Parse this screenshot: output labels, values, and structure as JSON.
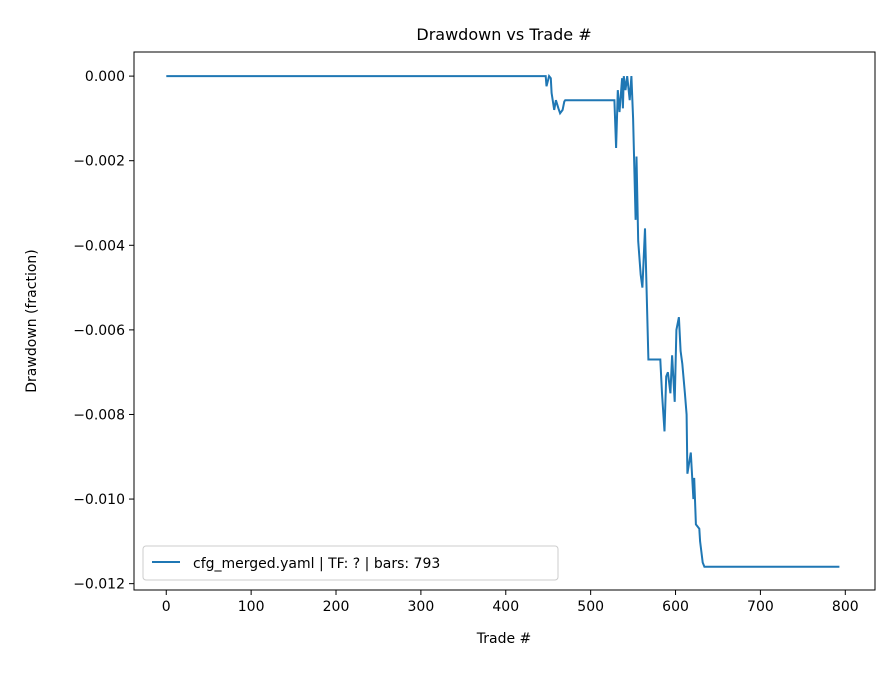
{
  "chart_data": {
    "type": "line",
    "title": "Drawdown vs Trade #",
    "xlabel": "Trade #",
    "ylabel": "Drawdown (fraction)",
    "xlim": [
      -38,
      835
    ],
    "ylim": [
      -0.01215,
      0.00057
    ],
    "xticks": [
      0,
      100,
      200,
      300,
      400,
      500,
      600,
      700,
      800
    ],
    "yticks": [
      0.0,
      -0.002,
      -0.004,
      -0.006,
      -0.008,
      -0.01,
      -0.012
    ],
    "ytick_labels": [
      "0.000",
      "−0.002",
      "−0.004",
      "−0.006",
      "−0.008",
      "−0.010",
      "−0.012"
    ],
    "grid": false,
    "legend_position": "lower-left",
    "series": [
      {
        "name": "cfg_merged.yaml | TF: ? | bars: 793",
        "color": "#1f77b4",
        "x": [
          0,
          447,
          448,
          451,
          453,
          454,
          457,
          459,
          462,
          464,
          467,
          469,
          470,
          528,
          530,
          532,
          534,
          537,
          538,
          539,
          541,
          543,
          546,
          548,
          550,
          553,
          554,
          556,
          559,
          561,
          564,
          568,
          582,
          584,
          587,
          589,
          591,
          594,
          596,
          599,
          601,
          604,
          606,
          608,
          611,
          613,
          614,
          618,
          621,
          622,
          624,
          628,
          629,
          632,
          634,
          793
        ],
        "y": [
          0,
          0,
          -0.00024,
          0,
          -5e-05,
          -0.0004,
          -0.0008,
          -0.00057,
          -0.00076,
          -0.00088,
          -0.0008,
          -0.0006,
          -0.00057,
          -0.00057,
          -0.0017,
          -0.00033,
          -0.00085,
          -5e-05,
          -0.00076,
          0,
          -0.00033,
          0,
          -0.00057,
          0,
          -0.001,
          -0.0034,
          -0.0019,
          -0.0039,
          -0.0047,
          -0.005,
          -0.0036,
          -0.0067,
          -0.0067,
          -0.0075,
          -0.0084,
          -0.0071,
          -0.007,
          -0.0075,
          -0.0066,
          -0.0077,
          -0.006,
          -0.0057,
          -0.0065,
          -0.0068,
          -0.0075,
          -0.008,
          -0.0094,
          -0.0089,
          -0.01,
          -0.0095,
          -0.0106,
          -0.0107,
          -0.011,
          -0.0115,
          -0.0116,
          -0.0116
        ]
      }
    ]
  }
}
